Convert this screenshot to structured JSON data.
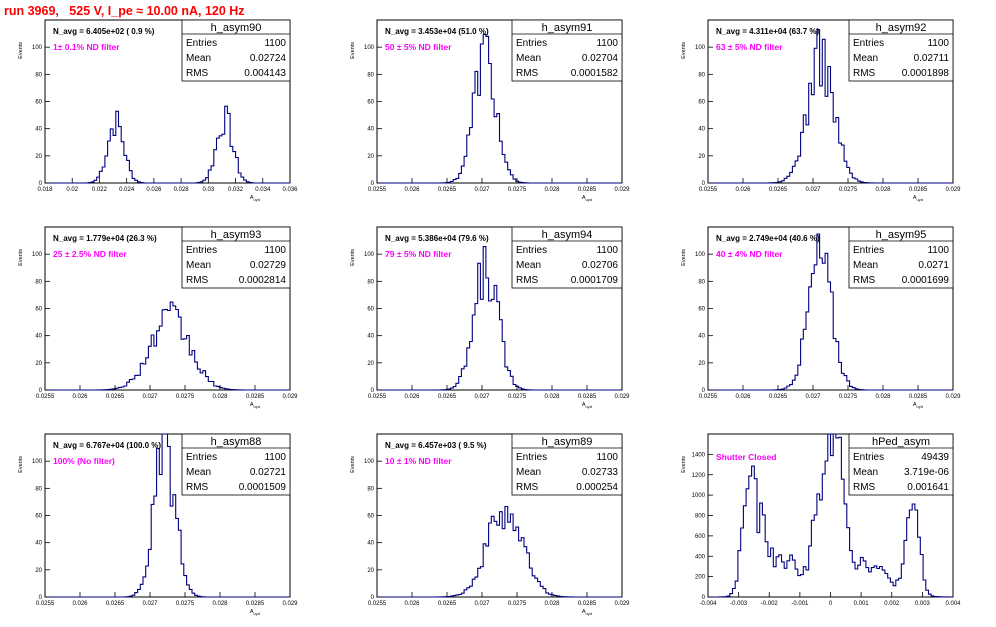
{
  "header": {
    "title": "run 3969,   525 V, I_pe ≈ 10.00 nA, 120 Hz"
  },
  "chart_data": [
    {
      "type": "bar",
      "name": "h_asym90",
      "navg": "N_avg = 6.405e+02 ( 0.9 %)",
      "filter": "1± 0.1% ND filter",
      "stats": [
        [
          "Entries",
          "1100"
        ],
        [
          "Mean",
          "0.02724"
        ],
        [
          "RMS",
          "0.004143"
        ]
      ],
      "ylabel": "Events",
      "xlabel": "A_uyd",
      "xlim": [
        0.018,
        0.036
      ],
      "ylim": [
        0,
        120
      ],
      "xticks": [
        0.018,
        0.02,
        0.022,
        0.024,
        0.026,
        0.028,
        0.03,
        0.032,
        0.034,
        0.036
      ],
      "xticklabels": [
        "0.018",
        "0.02",
        "0.022",
        "0.024",
        "0.026",
        "0.028",
        "0.03",
        "0.032",
        "0.034",
        "0.036"
      ],
      "yticks": [
        0,
        20,
        40,
        60,
        80,
        100
      ],
      "yticklabels": [
        "0",
        "20",
        "40",
        "60",
        "80",
        "100"
      ],
      "peaks": [
        [
          0.0232,
          0.0006,
          45
        ],
        [
          0.0312,
          0.0006,
          47
        ]
      ]
    },
    {
      "type": "bar",
      "name": "h_asym91",
      "navg": "N_avg = 3.453e+04 (51.0 %)",
      "filter": "50 ± 5% ND filter",
      "stats": [
        [
          "Entries",
          "1100"
        ],
        [
          "Mean",
          "0.02704"
        ],
        [
          "RMS",
          "0.0001582"
        ]
      ],
      "ylabel": "Events",
      "xlabel": "A_uyd",
      "xlim": [
        0.0255,
        0.029
      ],
      "ylim": [
        0,
        120
      ],
      "xticks": [
        0.0255,
        0.026,
        0.0265,
        0.027,
        0.0275,
        0.028,
        0.0285,
        0.029
      ],
      "xticklabels": [
        "0.0255",
        "0.026",
        "0.0265",
        "0.027",
        "0.0275",
        "0.028",
        "0.0285",
        "0.029"
      ],
      "yticks": [
        0,
        20,
        40,
        60,
        80,
        100
      ],
      "yticklabels": [
        "0",
        "20",
        "40",
        "60",
        "80",
        "100"
      ],
      "peaks": [
        [
          0.02704,
          0.000158,
          95
        ]
      ]
    },
    {
      "type": "bar",
      "name": "h_asym92",
      "navg": "N_avg = 4.311e+04 (63.7 %)",
      "filter": "63 ± 5% ND filter",
      "stats": [
        [
          "Entries",
          "1100"
        ],
        [
          "Mean",
          "0.02711"
        ],
        [
          "RMS",
          "0.0001898"
        ]
      ],
      "ylabel": "Events",
      "xlabel": "A_uyd",
      "xlim": [
        0.0255,
        0.029
      ],
      "ylim": [
        0,
        120
      ],
      "xticks": [
        0.0255,
        0.026,
        0.0265,
        0.027,
        0.0275,
        0.028,
        0.0285,
        0.029
      ],
      "xticklabels": [
        "0.0255",
        "0.026",
        "0.0265",
        "0.027",
        "0.0275",
        "0.028",
        "0.0285",
        "0.029"
      ],
      "yticks": [
        0,
        20,
        40,
        60,
        80,
        100
      ],
      "yticklabels": [
        "0",
        "20",
        "40",
        "60",
        "80",
        "100"
      ],
      "peaks": [
        [
          0.02711,
          0.00019,
          92
        ]
      ]
    },
    {
      "type": "bar",
      "name": "h_asym93",
      "navg": "N_avg = 1.779e+04 (26.3 %)",
      "filter": "25 ± 2.5% ND filter",
      "stats": [
        [
          "Entries",
          "1100"
        ],
        [
          "Mean",
          "0.02729"
        ],
        [
          "RMS",
          "0.0002814"
        ]
      ],
      "ylabel": "Events",
      "xlabel": "A_uyd",
      "xlim": [
        0.0255,
        0.029
      ],
      "ylim": [
        0,
        120
      ],
      "xticks": [
        0.0255,
        0.026,
        0.0265,
        0.027,
        0.0275,
        0.028,
        0.0285,
        0.029
      ],
      "xticklabels": [
        "0.0255",
        "0.026",
        "0.0265",
        "0.027",
        "0.0275",
        "0.028",
        "0.0285",
        "0.029"
      ],
      "yticks": [
        0,
        20,
        40,
        60,
        80,
        100
      ],
      "yticklabels": [
        "0",
        "20",
        "40",
        "60",
        "80",
        "100"
      ],
      "peaks": [
        [
          0.02729,
          0.00028,
          52
        ]
      ]
    },
    {
      "type": "bar",
      "name": "h_asym94",
      "navg": "N_avg = 5.386e+04 (79.6 %)",
      "filter": "79 ± 5% ND filter",
      "stats": [
        [
          "Entries",
          "1100"
        ],
        [
          "Mean",
          "0.02706"
        ],
        [
          "RMS",
          "0.0001709"
        ]
      ],
      "ylabel": "Events",
      "xlabel": "A_uyd",
      "xlim": [
        0.0255,
        0.029
      ],
      "ylim": [
        0,
        120
      ],
      "xticks": [
        0.0255,
        0.026,
        0.0265,
        0.027,
        0.0275,
        0.028,
        0.0285,
        0.029
      ],
      "xticklabels": [
        "0.0255",
        "0.026",
        "0.0265",
        "0.027",
        "0.0275",
        "0.028",
        "0.0285",
        "0.029"
      ],
      "yticks": [
        0,
        20,
        40,
        60,
        80,
        100
      ],
      "yticklabels": [
        "0",
        "20",
        "40",
        "60",
        "80",
        "100"
      ],
      "peaks": [
        [
          0.02706,
          0.00017,
          90
        ]
      ]
    },
    {
      "type": "bar",
      "name": "h_asym95",
      "navg": "N_avg = 2.749e+04 (40.6 %)",
      "filter": "40 ± 4% ND filter",
      "stats": [
        [
          "Entries",
          "1100"
        ],
        [
          "Mean",
          "0.0271"
        ],
        [
          "RMS",
          "0.0001699"
        ]
      ],
      "ylabel": "Events",
      "xlabel": "A_uyd",
      "xlim": [
        0.0255,
        0.029
      ],
      "ylim": [
        0,
        120
      ],
      "xticks": [
        0.0255,
        0.026,
        0.0265,
        0.027,
        0.0275,
        0.028,
        0.0285,
        0.029
      ],
      "xticklabels": [
        "0.0255",
        "0.026",
        "0.0265",
        "0.027",
        "0.0275",
        "0.028",
        "0.0285",
        "0.029"
      ],
      "yticks": [
        0,
        20,
        40,
        60,
        80,
        100
      ],
      "yticklabels": [
        "0",
        "20",
        "40",
        "60",
        "80",
        "100"
      ],
      "peaks": [
        [
          0.0271,
          0.00017,
          97
        ]
      ]
    },
    {
      "type": "bar",
      "name": "h_asym88",
      "navg": "N_avg = 6.767e+04 (100.0 %)",
      "filter": "100% (No filter)",
      "stats": [
        [
          "Entries",
          "1100"
        ],
        [
          "Mean",
          "0.02721"
        ],
        [
          "RMS",
          "0.0001509"
        ]
      ],
      "ylabel": "Events",
      "xlabel": "A_uyd",
      "xlim": [
        0.0255,
        0.029
      ],
      "ylim": [
        0,
        120
      ],
      "xticks": [
        0.0255,
        0.026,
        0.0265,
        0.027,
        0.0275,
        0.028,
        0.0285,
        0.029
      ],
      "xticklabels": [
        "0.0255",
        "0.026",
        "0.0265",
        "0.027",
        "0.0275",
        "0.028",
        "0.0285",
        "0.029"
      ],
      "yticks": [
        0,
        20,
        40,
        60,
        80,
        100
      ],
      "yticklabels": [
        "0",
        "20",
        "40",
        "60",
        "80",
        "100"
      ],
      "peaks": [
        [
          0.02721,
          0.00015,
          110
        ]
      ]
    },
    {
      "type": "bar",
      "name": "h_asym89",
      "navg": "N_avg = 6.457e+03 ( 9.5 %)",
      "filter": "10 ± 1% ND filter",
      "stats": [
        [
          "Entries",
          "1100"
        ],
        [
          "Mean",
          "0.02733"
        ],
        [
          "RMS",
          "0.000254"
        ]
      ],
      "ylabel": "Events",
      "xlabel": "A_uyd",
      "xlim": [
        0.0255,
        0.029
      ],
      "ylim": [
        0,
        120
      ],
      "xticks": [
        0.0255,
        0.026,
        0.0265,
        0.027,
        0.0275,
        0.028,
        0.0285,
        0.029
      ],
      "xticklabels": [
        "0.0255",
        "0.026",
        "0.0265",
        "0.027",
        "0.0275",
        "0.028",
        "0.0285",
        "0.029"
      ],
      "yticks": [
        0,
        20,
        40,
        60,
        80,
        100
      ],
      "yticklabels": [
        "0",
        "20",
        "40",
        "60",
        "80",
        "100"
      ],
      "peaks": [
        [
          0.02733,
          0.00025,
          65
        ]
      ]
    },
    {
      "type": "bar",
      "name": "hPed_asym",
      "navg": "",
      "filter": "Shutter Closed",
      "stats": [
        [
          "Entries",
          "49439"
        ],
        [
          "Mean",
          "3.719e-06"
        ],
        [
          "RMS",
          "0.001641"
        ]
      ],
      "ylabel": "Events",
      "xlabel": "",
      "xlim": [
        -0.004,
        0.004
      ],
      "ylim": [
        0,
        1600
      ],
      "xticks": [
        -0.004,
        -0.003,
        -0.002,
        -0.001,
        0,
        0.001,
        0.002,
        0.003,
        0.004
      ],
      "xticklabels": [
        "-0.004",
        "-0.003",
        "-0.002",
        "-0.001",
        "0",
        "0.001",
        "0.002",
        "0.003",
        "0.004"
      ],
      "yticks": [
        0,
        200,
        400,
        600,
        800,
        1000,
        1200,
        1400
      ],
      "yticklabels": [
        "0",
        "200",
        "400",
        "600",
        "800",
        "1000",
        "1200",
        "1400"
      ],
      "peaks": [
        [
          -0.0027,
          0.0002,
          950
        ],
        [
          -0.0023,
          0.00025,
          500
        ],
        [
          -0.0015,
          0.0006,
          350
        ],
        [
          -0.0004,
          0.0002,
          700
        ],
        [
          0.0,
          0.00018,
          950
        ],
        [
          0.0003,
          0.00018,
          1300
        ],
        [
          0.001,
          0.0008,
          350
        ],
        [
          0.0027,
          0.0002,
          880
        ]
      ]
    }
  ]
}
